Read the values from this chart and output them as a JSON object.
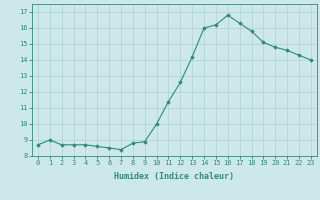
{
  "x": [
    0,
    1,
    2,
    3,
    4,
    5,
    6,
    7,
    8,
    9,
    10,
    11,
    12,
    13,
    14,
    15,
    16,
    17,
    18,
    19,
    20,
    21,
    22,
    23
  ],
  "y": [
    8.7,
    9.0,
    8.7,
    8.7,
    8.7,
    8.6,
    8.5,
    8.4,
    8.8,
    8.9,
    10.0,
    11.4,
    12.6,
    14.2,
    16.0,
    16.2,
    16.8,
    16.3,
    15.8,
    15.1,
    14.8,
    14.6,
    14.3,
    14.0
  ],
  "line_color": "#2e8b7a",
  "marker": "D",
  "marker_size": 1.8,
  "bg_color": "#cce8e8",
  "grid_color": "#b0d0d0",
  "xlabel": "Humidex (Indice chaleur)",
  "xlim": [
    -0.5,
    23.5
  ],
  "ylim": [
    8.0,
    17.5
  ],
  "yticks": [
    8,
    9,
    10,
    11,
    12,
    13,
    14,
    15,
    16,
    17
  ],
  "xticks": [
    0,
    1,
    2,
    3,
    4,
    5,
    6,
    7,
    8,
    9,
    10,
    11,
    12,
    13,
    14,
    15,
    16,
    17,
    18,
    19,
    20,
    21,
    22,
    23
  ],
  "tick_color": "#2e8b7a",
  "label_color": "#2e8b7a",
  "tick_fontsize": 5.0,
  "xlabel_fontsize": 6.0
}
